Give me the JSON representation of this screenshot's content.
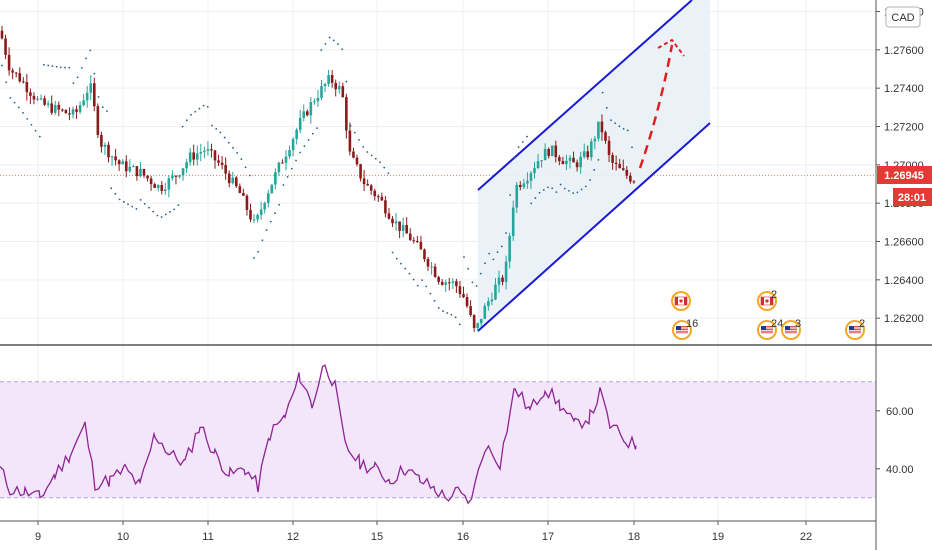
{
  "currency_label": "CAD",
  "last_price_label": "1.26945",
  "countdown_label": "28:01",
  "colors": {
    "up": "#26a69a",
    "down": "#8b1a1a",
    "psar": "#2a5d8f",
    "channel": "#1a1ad6",
    "channel_fill": "#e9f1f6",
    "projection": "#e02020",
    "rsi_line": "#8e2494",
    "rsi_band": "#f3e6fb",
    "price_badge": "#e53935",
    "last_line": "#e57373"
  },
  "chart_data": [
    {
      "type": "candlestick",
      "x_ticks": [
        "9",
        "10",
        "11",
        "12",
        "15",
        "16",
        "17",
        "18",
        "19",
        "22"
      ],
      "y_ticks": [
        "1.27800",
        "1.27600",
        "1.27400",
        "1.27200",
        "1.27000",
        "1.26800",
        "1.26600",
        "1.26400",
        "1.26200"
      ],
      "y_range": [
        1.2606,
        1.2786
      ],
      "last_price": 1.26945,
      "indicators": [
        "Parabolic SAR"
      ],
      "drawings": [
        "rising channel",
        "projection arrow"
      ],
      "events": [
        {
          "icon": "canada-flag-icon",
          "count": ""
        },
        {
          "icon": "us-flag-icon",
          "count": "16"
        },
        {
          "icon": "canada-flag-icon",
          "count": "2"
        },
        {
          "icon": "us-flag-icon",
          "count": "24"
        },
        {
          "icon": "us-flag-icon",
          "count": "3"
        },
        {
          "icon": "us-flag-icon",
          "count": "2"
        }
      ]
    },
    {
      "type": "line",
      "name": "RSI",
      "y_ticks": [
        "60.00",
        "40.00"
      ],
      "band": [
        30,
        70
      ],
      "y_range": [
        22,
        82
      ]
    }
  ]
}
